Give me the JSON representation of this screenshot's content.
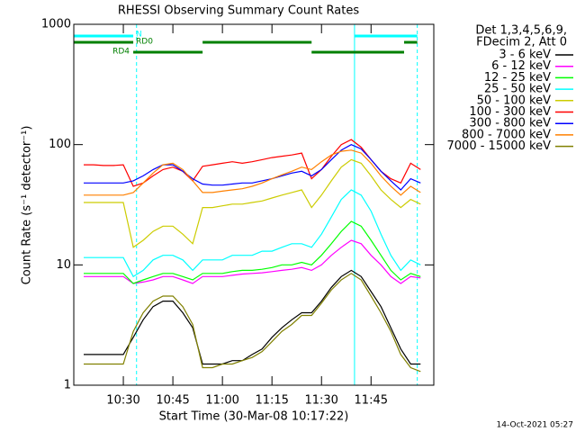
{
  "chart_data": {
    "type": "line",
    "title": "RHESSI Observing Summary Count Rates",
    "x_label": "Start Time (30-Mar-08 10:17:22)",
    "y_label": "Count Rate (s⁻¹ detector⁻¹)",
    "footer": "14-Oct-2021 05:27",
    "legend_title": [
      "Det 1,3,4,5,6,9,",
      "FDecim 2, Att 0"
    ],
    "legend_position": "right",
    "log_y": true,
    "xlim": [
      "10:15",
      "12:04"
    ],
    "xticks": [
      "10:30",
      "10:45",
      "11:00",
      "11:15",
      "11:30",
      "11:45"
    ],
    "ylim": [
      1,
      1000
    ],
    "yticks": [
      1,
      10,
      100,
      1000
    ],
    "x": [
      "10:18",
      "10:21",
      "10:24",
      "10:27",
      "10:30",
      "10:33",
      "10:36",
      "10:39",
      "10:42",
      "10:45",
      "10:48",
      "10:51",
      "10:54",
      "10:57",
      "11:00",
      "11:03",
      "11:06",
      "11:09",
      "11:12",
      "11:15",
      "11:18",
      "11:21",
      "11:24",
      "11:27",
      "11:30",
      "11:33",
      "11:36",
      "11:39",
      "11:42",
      "11:45",
      "11:48",
      "11:51",
      "11:54",
      "11:57",
      "12:00"
    ],
    "series": [
      {
        "name": "3 - 6 keV",
        "color": "#000000",
        "values": [
          1.8,
          1.8,
          1.8,
          1.8,
          1.8,
          2.5,
          3.5,
          4.5,
          5,
          5,
          4,
          3,
          1.5,
          1.5,
          1.5,
          1.6,
          1.6,
          1.8,
          2,
          2.5,
          3,
          3.5,
          4,
          4,
          5,
          6.5,
          8,
          9,
          8,
          6,
          4.5,
          3,
          2,
          1.5,
          1.5
        ]
      },
      {
        "name": "6 - 12 keV",
        "color": "#ff00ff",
        "values": [
          8,
          8,
          8,
          8,
          8,
          7,
          7.2,
          7.5,
          8,
          8,
          7.5,
          7,
          8,
          8,
          8,
          8.2,
          8.4,
          8.5,
          8.6,
          8.8,
          9,
          9.2,
          9.5,
          9,
          10,
          12,
          14,
          16,
          15,
          12,
          10,
          8,
          7,
          8,
          7.8
        ]
      },
      {
        "name": "12 - 25 keV",
        "color": "#00ff00",
        "values": [
          8.5,
          8.5,
          8.5,
          8.5,
          8.5,
          7,
          7.5,
          8,
          8.5,
          8.5,
          8,
          7.5,
          8.5,
          8.5,
          8.5,
          8.8,
          9,
          9,
          9.2,
          9.5,
          10,
          10,
          10.5,
          10,
          12,
          15,
          19,
          23,
          21,
          16,
          12,
          9,
          7.5,
          8.5,
          8
        ]
      },
      {
        "name": "25 - 50 keV",
        "color": "#00ffff",
        "values": [
          11.5,
          11.5,
          11.5,
          11.5,
          11.5,
          8,
          9,
          11,
          12,
          12,
          11,
          9,
          11,
          11,
          11,
          12,
          12,
          12,
          13,
          13,
          14,
          15,
          15,
          14,
          18,
          25,
          35,
          42,
          38,
          28,
          18,
          12,
          9,
          11,
          10
        ]
      },
      {
        "name": "50 - 100 keV",
        "color": "#cccc00",
        "values": [
          33,
          33,
          33,
          33,
          33,
          14,
          16,
          19,
          21,
          21,
          18,
          15,
          30,
          30,
          31,
          32,
          32,
          33,
          34,
          36,
          38,
          40,
          42,
          30,
          38,
          50,
          65,
          75,
          70,
          55,
          42,
          35,
          30,
          35,
          32
        ]
      },
      {
        "name": "100 - 300 keV",
        "color": "#ff0000",
        "values": [
          68,
          68,
          67,
          67,
          68,
          45,
          48,
          55,
          62,
          65,
          60,
          50,
          66,
          68,
          70,
          72,
          70,
          72,
          75,
          78,
          80,
          82,
          85,
          52,
          62,
          80,
          100,
          110,
          95,
          75,
          60,
          52,
          48,
          70,
          62
        ]
      },
      {
        "name": "300 - 800 keV",
        "color": "#0000ff",
        "values": [
          48,
          48,
          48,
          48,
          48,
          50,
          55,
          62,
          68,
          68,
          60,
          52,
          47,
          46,
          46,
          47,
          48,
          48,
          50,
          52,
          55,
          58,
          60,
          55,
          62,
          75,
          90,
          100,
          92,
          75,
          60,
          50,
          42,
          52,
          48
        ]
      },
      {
        "name": "800 - 7000 keV",
        "color": "#ff8000",
        "values": [
          38,
          38,
          38,
          38,
          38,
          40,
          48,
          58,
          68,
          70,
          62,
          50,
          40,
          40,
          41,
          42,
          43,
          45,
          48,
          52,
          56,
          60,
          65,
          62,
          72,
          82,
          88,
          90,
          85,
          70,
          55,
          45,
          38,
          45,
          40
        ]
      },
      {
        "name": "7000 - 15000 keV",
        "color": "#808000",
        "values": [
          1.5,
          1.5,
          1.5,
          1.5,
          1.5,
          2.8,
          4,
          5,
          5.5,
          5.5,
          4.5,
          3.2,
          1.4,
          1.4,
          1.5,
          1.5,
          1.6,
          1.7,
          1.9,
          2.3,
          2.8,
          3.2,
          3.8,
          3.8,
          4.8,
          6.2,
          7.5,
          8.5,
          7.5,
          5.5,
          4,
          2.8,
          1.8,
          1.4,
          1.3
        ]
      }
    ],
    "flags": [
      {
        "label": "N",
        "color": "#00ffff",
        "segments": [
          [
            "10:15",
            "10:33"
          ],
          [
            "11:40",
            "11:59"
          ]
        ]
      },
      {
        "label": "RD0",
        "color": "#008000",
        "segments": [
          [
            "10:15",
            "10:33"
          ],
          [
            "10:54",
            "11:27"
          ],
          [
            "11:55",
            "11:59"
          ]
        ]
      },
      {
        "label": "RD4",
        "color": "#008000",
        "segments": [
          [
            "10:33",
            "10:54"
          ],
          [
            "11:27",
            "11:55"
          ]
        ]
      }
    ],
    "vlines": [
      {
        "x": "10:34",
        "color": "#00ffff",
        "dashed": true
      },
      {
        "x": "11:40",
        "color": "#00ffff",
        "dashed": false
      },
      {
        "x": "11:59",
        "color": "#00ffff",
        "dashed": true
      }
    ]
  }
}
